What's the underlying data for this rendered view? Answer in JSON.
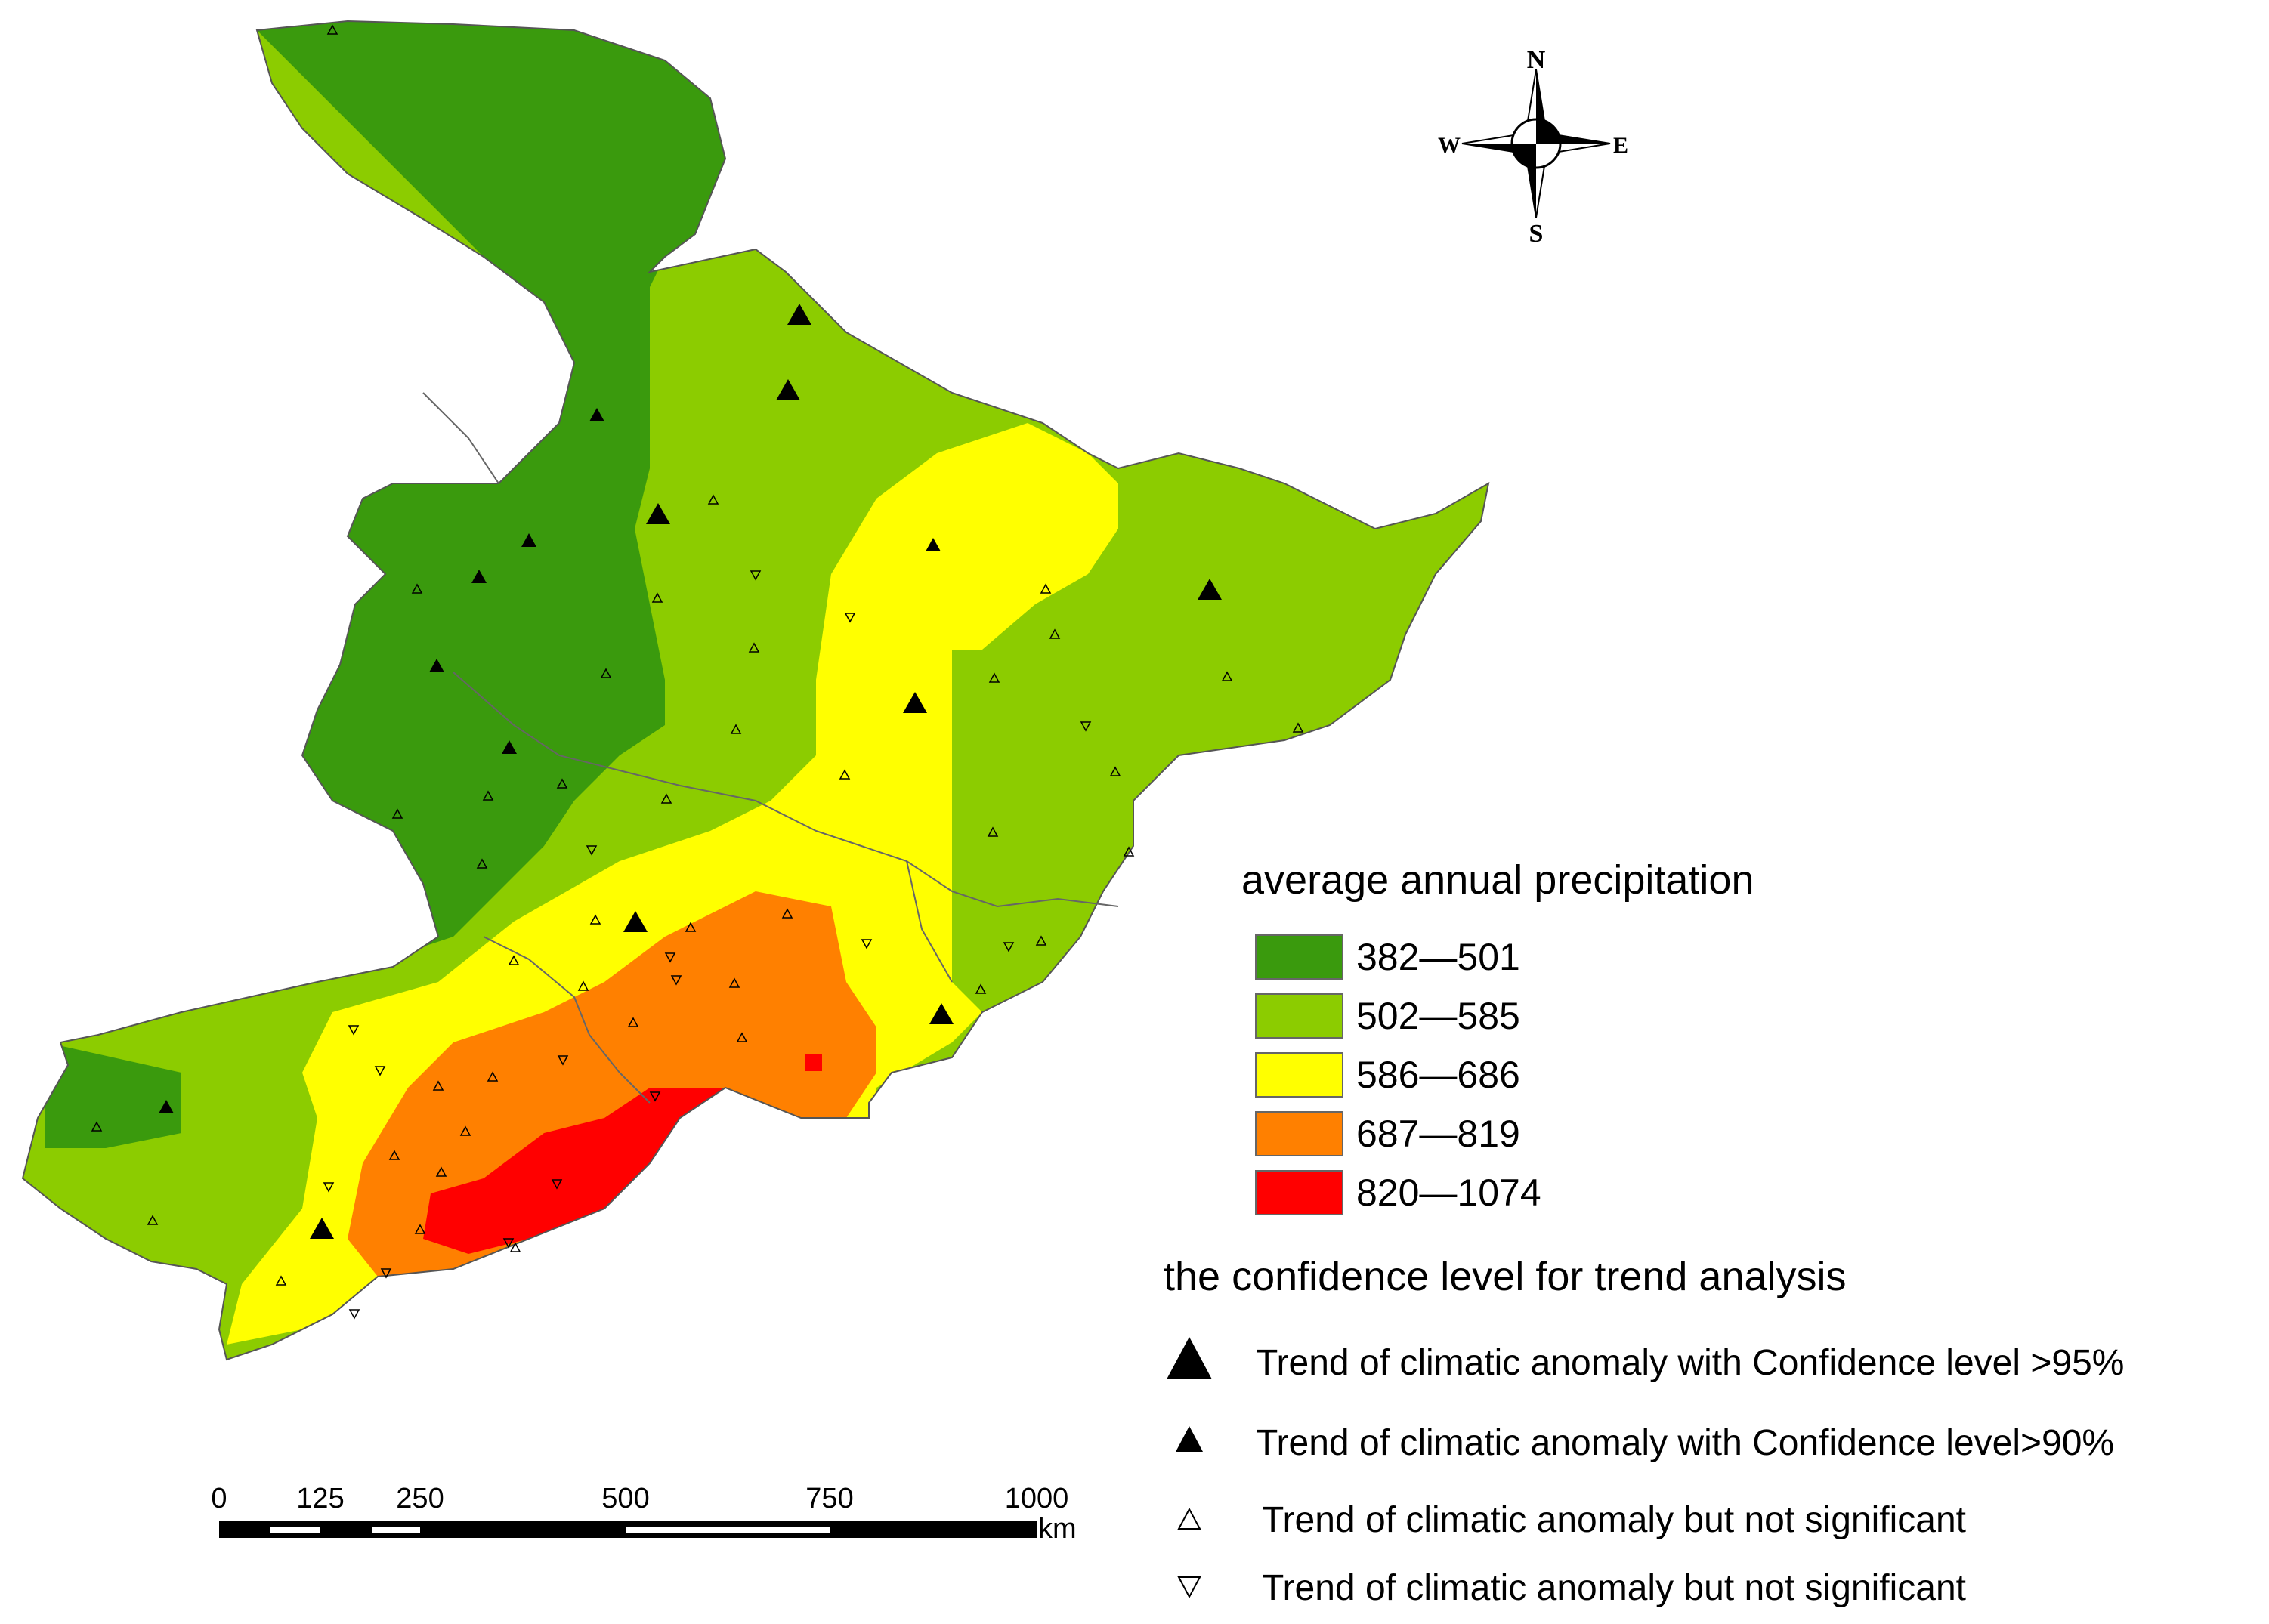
{
  "compass": {
    "n": "N",
    "s": "S",
    "e": "E",
    "w": "W"
  },
  "legend": {
    "precip_title": "average annual precipitation",
    "classes": [
      {
        "label": "382—501",
        "color": "#3a9a0d"
      },
      {
        "label": "502—585",
        "color": "#8ccc00"
      },
      {
        "label": "586—686",
        "color": "#ffff00"
      },
      {
        "label": "687—819",
        "color": "#ff8000"
      },
      {
        "label": "820—1074",
        "color": "#ff0000"
      }
    ],
    "trend_title": "the confidence level  for trend analysis",
    "symbols": [
      {
        "icon": "large-filled-triangle-icon",
        "label": "Trend of climatic anomaly with Confidence level >95%"
      },
      {
        "icon": "small-filled-triangle-icon",
        "label": "Trend of climatic anomaly with Confidence level>90%"
      },
      {
        "icon": "open-up-triangle-icon",
        "label": "Trend of climatic anomaly but not significant"
      },
      {
        "icon": "open-down-triangle-icon",
        "label": "Trend of climatic anomaly but not significant"
      }
    ]
  },
  "scalebar": {
    "ticks": [
      "0",
      "125",
      "250",
      "500",
      "750",
      "1000"
    ],
    "unit": "km"
  }
}
